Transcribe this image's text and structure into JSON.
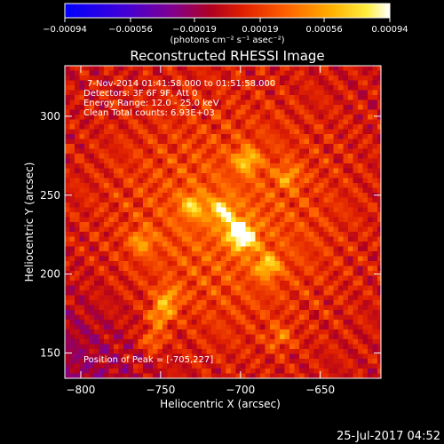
{
  "chart_data": {
    "type": "heatmap",
    "title": "Reconstructed RHESSI Image",
    "xlabel": "Heliocentric X (arcsec)",
    "ylabel": "Heliocentric Y (arcsec)",
    "xlim": [
      -810,
      -612
    ],
    "ylim": [
      134,
      332
    ],
    "x_ticks": [
      {
        "value": -800,
        "label": "−800"
      },
      {
        "value": -750,
        "label": "−750"
      },
      {
        "value": -700,
        "label": "−700"
      },
      {
        "value": -650,
        "label": "−650"
      }
    ],
    "y_ticks": [
      {
        "value": 150,
        "label": "150"
      },
      {
        "value": 200,
        "label": "200"
      },
      {
        "value": 250,
        "label": "250"
      },
      {
        "value": 300,
        "label": "300"
      }
    ],
    "colorbar": {
      "range": [
        -0.00094,
        0.00094
      ],
      "ticks": [
        {
          "value": -0.00094,
          "label": "−0.00094"
        },
        {
          "value": -0.00056,
          "label": "−0.00056"
        },
        {
          "value": -0.00019,
          "label": "−0.00019"
        },
        {
          "value": 0.00019,
          "label": "0.00019"
        },
        {
          "value": 0.00056,
          "label": "0.00056"
        },
        {
          "value": 0.00094,
          "label": "0.00094"
        }
      ],
      "units_label": "(photons cm⁻² s⁻¹ asec⁻²)"
    },
    "annotations": [
      "7-Nov-2014 01:41:58.000 to 01:51:58.000",
      "Detectors: 3F 6F 9F, Att 0",
      "Energy Range: 12.0 - 25.0 keV",
      "Clean     Total counts: 6.93E+03"
    ],
    "peak_label": "Position of Peak = [-705,227]",
    "peak": [
      -705,
      227
    ],
    "bright_sources": [
      {
        "x": -702,
        "y": 228,
        "value": 0.00094
      },
      {
        "x": -697,
        "y": 222,
        "value": 0.0009
      },
      {
        "x": -712,
        "y": 240,
        "value": 0.00075
      },
      {
        "x": -730,
        "y": 243,
        "value": 0.00062
      },
      {
        "x": -696,
        "y": 272,
        "value": 0.00068
      },
      {
        "x": -683,
        "y": 205,
        "value": 0.0007
      },
      {
        "x": -750,
        "y": 174,
        "value": 0.00062
      },
      {
        "x": -745,
        "y": 185,
        "value": 0.00055
      },
      {
        "x": -762,
        "y": 220,
        "value": 0.0005
      },
      {
        "x": -755,
        "y": 158,
        "value": 0.0005
      },
      {
        "x": -670,
        "y": 262,
        "value": 0.00045
      },
      {
        "x": -675,
        "y": 160,
        "value": 0.0004
      }
    ],
    "grid": false,
    "colormap": "RHESSI (blue-purple-red-orange-yellow-white)"
  },
  "footer": {
    "timestamp": "25-Jul-2017 04:52"
  },
  "colors": {
    "background": "#000000",
    "foreground": "#ffffff"
  }
}
